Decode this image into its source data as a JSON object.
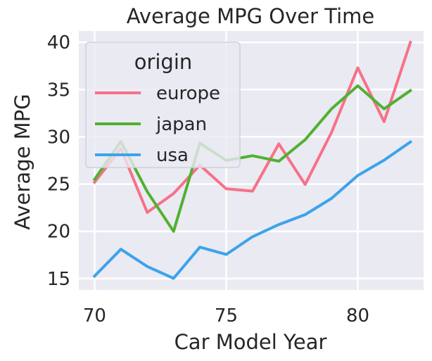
{
  "chart_data": {
    "type": "line",
    "title": "Average MPG Over Time",
    "xlabel": "Car Model Year",
    "ylabel": "Average MPG",
    "x": [
      70,
      71,
      72,
      73,
      74,
      75,
      76,
      77,
      78,
      79,
      80,
      81,
      82
    ],
    "xlim": [
      69.4,
      82.5
    ],
    "ylim": [
      13.8,
      41.2
    ],
    "xticks": [
      70,
      75,
      80
    ],
    "yticks": [
      15,
      20,
      25,
      30,
      35,
      40
    ],
    "grid": true,
    "legend": {
      "title": "origin",
      "placement": "top-left"
    },
    "series": [
      {
        "name": "europe",
        "color": "#f77189",
        "values": [
          25.2,
          28.75,
          22.0,
          24.0,
          27.0,
          24.5,
          24.25,
          29.25,
          24.95,
          30.45,
          37.3,
          31.6,
          40.0
        ]
      },
      {
        "name": "japan",
        "color": "#50b131",
        "values": [
          25.5,
          29.5,
          24.2,
          20.0,
          29.33,
          27.5,
          28.0,
          27.42,
          29.69,
          32.95,
          35.4,
          32.96,
          34.89
        ]
      },
      {
        "name": "usa",
        "color": "#3ba3ec",
        "values": [
          15.27,
          18.1,
          16.28,
          15.03,
          18.33,
          17.55,
          19.43,
          20.72,
          21.77,
          23.48,
          25.91,
          27.53,
          29.45
        ]
      }
    ]
  }
}
